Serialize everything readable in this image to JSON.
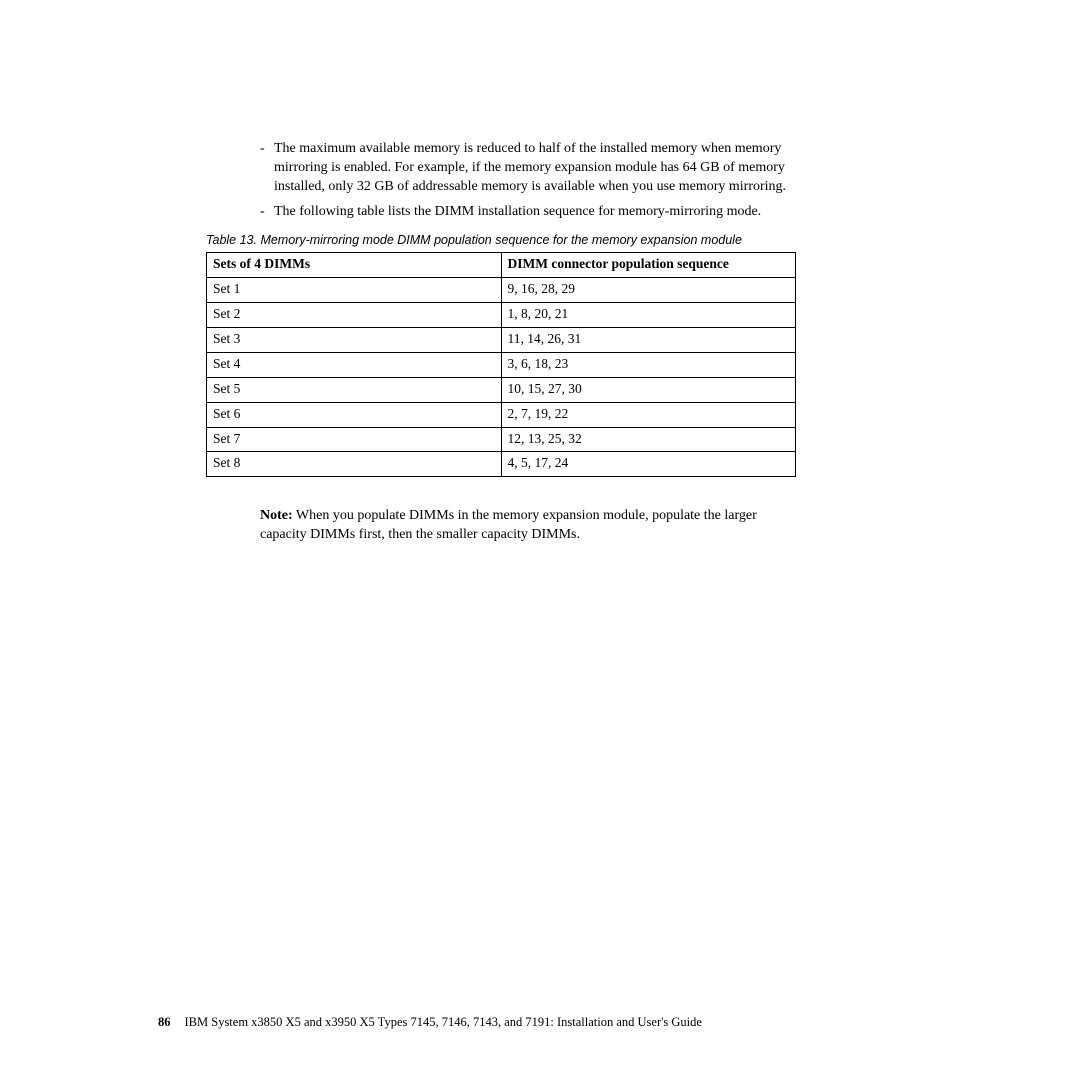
{
  "bullets": [
    "The maximum available memory is reduced to half of the installed memory when memory mirroring is enabled. For example, if the memory expansion module has 64 GB of memory installed, only 32 GB of addressable memory is available when you use memory mirroring.",
    "The following table lists the DIMM installation sequence for memory-mirroring mode."
  ],
  "table_caption": "Table 13. Memory-mirroring mode DIMM population sequence for the memory expansion module",
  "table": {
    "columns": [
      "Sets of 4 DIMMs",
      "DIMM connector population sequence"
    ],
    "rows": [
      [
        "Set 1",
        "9, 16, 28, 29"
      ],
      [
        "Set 2",
        "1, 8, 20, 21"
      ],
      [
        "Set 3",
        "11, 14, 26, 31"
      ],
      [
        "Set 4",
        "3, 6, 18, 23"
      ],
      [
        "Set 5",
        "10, 15, 27, 30"
      ],
      [
        "Set 6",
        "2, 7, 19, 22"
      ],
      [
        "Set 7",
        "12, 13, 25, 32"
      ],
      [
        "Set 8",
        "4, 5, 17, 24"
      ]
    ],
    "colwidths": [
      "50%",
      "50%"
    ],
    "border_color": "#000000",
    "header_fontweight": "bold",
    "cell_fontsize": 13.5
  },
  "note_label": "Note:",
  "note_text": " When you populate DIMMs in the memory expansion module, populate the larger capacity DIMMs first, then the smaller capacity DIMMs.",
  "footer": {
    "page_number": "86",
    "text": "IBM System x3850 X5 and x3950 X5 Types 7145, 7146, 7143, and 7191: Installation and User's Guide"
  },
  "style": {
    "page_bg": "#ffffff",
    "text_color": "#000000",
    "body_font": "Palatino Linotype",
    "body_fontsize": 14,
    "caption_font": "Arial",
    "caption_fontsize": 12.5,
    "footer_fontsize": 12.5
  }
}
